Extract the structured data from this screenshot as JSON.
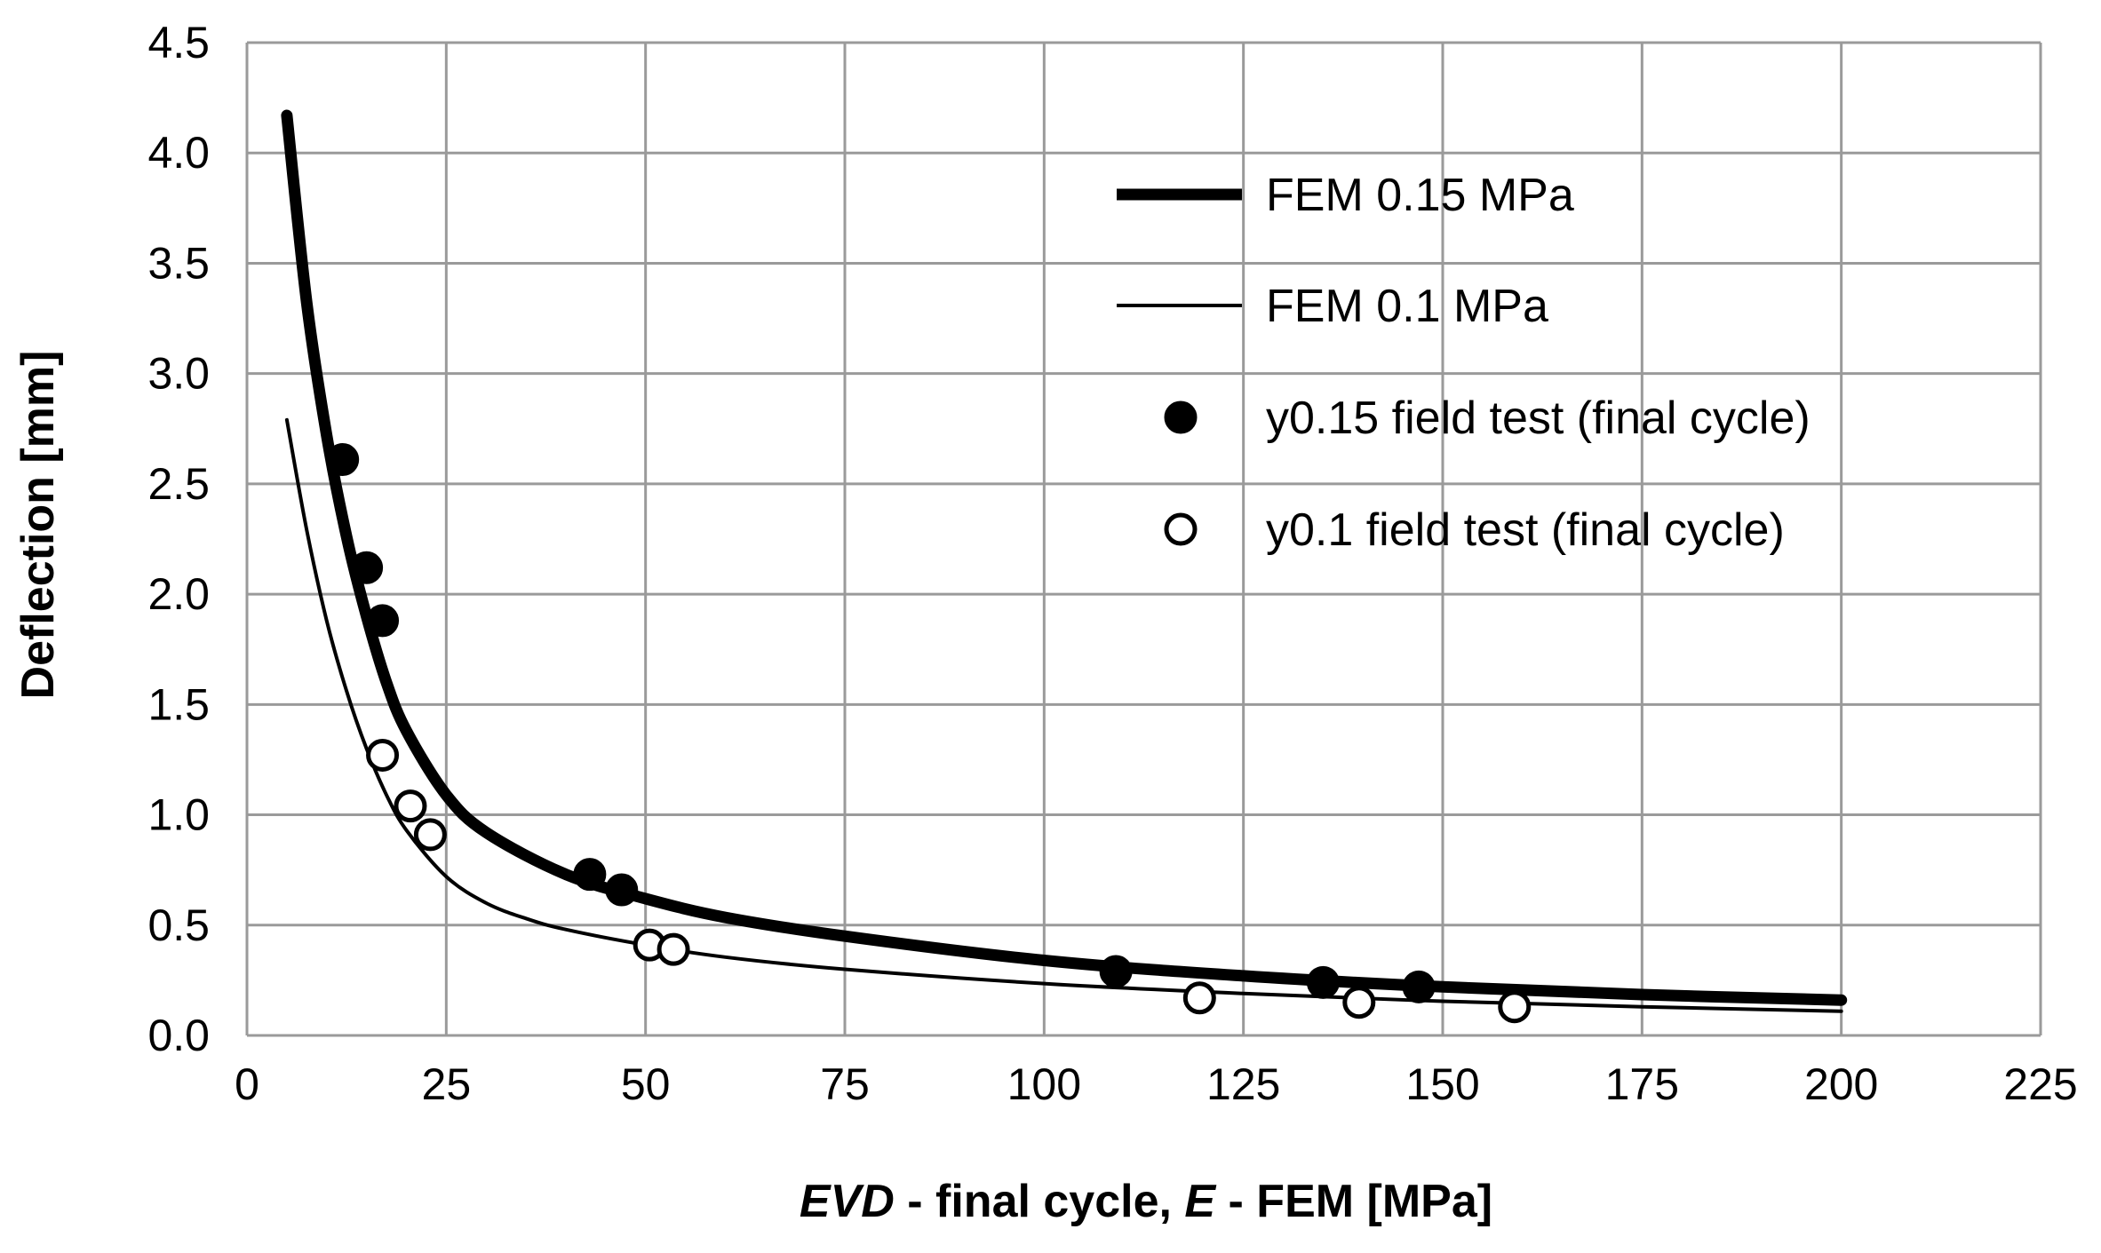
{
  "chart_data": {
    "type": "line",
    "title": "",
    "xlabel": {
      "italic_1": "EVD",
      "part_1": " - final cycle, ",
      "italic_2": "E",
      "part_2": " - FEM [MPa]"
    },
    "ylabel": "Deflection [mm]",
    "xlim": [
      0,
      225
    ],
    "ylim": [
      0,
      4.5
    ],
    "xticks": [
      0,
      25,
      50,
      75,
      100,
      125,
      150,
      175,
      200,
      225
    ],
    "xtick_labels": [
      "0",
      "25",
      "50",
      "75",
      "100",
      "125",
      "150",
      "175",
      "200",
      "225"
    ],
    "yticks": [
      0,
      0.5,
      1.0,
      1.5,
      2.0,
      2.5,
      3.0,
      3.5,
      4.0,
      4.5
    ],
    "ytick_labels": [
      "0.0",
      "0.5",
      "1.0",
      "1.5",
      "2.0",
      "2.5",
      "3.0",
      "3.5",
      "4.0",
      "4.5"
    ],
    "grid": true,
    "legend_position": "top-right",
    "series": [
      {
        "name": "FEM 0.15 MPa",
        "kind": "line",
        "style": "thick",
        "color": "#000000",
        "x": [
          5,
          7.5,
          10,
          12.5,
          15,
          17.5,
          20,
          25,
          30,
          40,
          50,
          60,
          75,
          100,
          125,
          150,
          175,
          200
        ],
        "y": [
          4.17,
          3.32,
          2.72,
          2.26,
          1.9,
          1.6,
          1.38,
          1.09,
          0.92,
          0.73,
          0.62,
          0.535,
          0.45,
          0.34,
          0.27,
          0.22,
          0.185,
          0.16
        ]
      },
      {
        "name": "FEM 0.1 MPa",
        "kind": "line",
        "style": "thin",
        "color": "#000000",
        "x": [
          5,
          7.5,
          10,
          12.5,
          15,
          17.5,
          20,
          25,
          30,
          35,
          40,
          50,
          60,
          75,
          100,
          125,
          150,
          175,
          200
        ],
        "y": [
          2.79,
          2.29,
          1.88,
          1.56,
          1.3,
          1.09,
          0.93,
          0.72,
          0.6,
          0.53,
          0.48,
          0.41,
          0.355,
          0.3,
          0.235,
          0.19,
          0.155,
          0.13,
          0.11
        ]
      },
      {
        "name": "y0.15 field test (final cycle)",
        "kind": "scatter",
        "marker": "filled-circle",
        "color": "#000000",
        "x": [
          12,
          15,
          17,
          43,
          47,
          109,
          135,
          147
        ],
        "y": [
          2.61,
          2.12,
          1.88,
          0.73,
          0.66,
          0.29,
          0.24,
          0.22
        ]
      },
      {
        "name": "y0.1 field test (final cycle)",
        "kind": "scatter",
        "marker": "open-circle",
        "color": "#000000",
        "x": [
          17,
          20.5,
          23,
          50.5,
          53.5,
          119.5,
          139.5,
          159
        ],
        "y": [
          1.27,
          1.04,
          0.91,
          0.41,
          0.39,
          0.17,
          0.15,
          0.13
        ]
      }
    ]
  }
}
